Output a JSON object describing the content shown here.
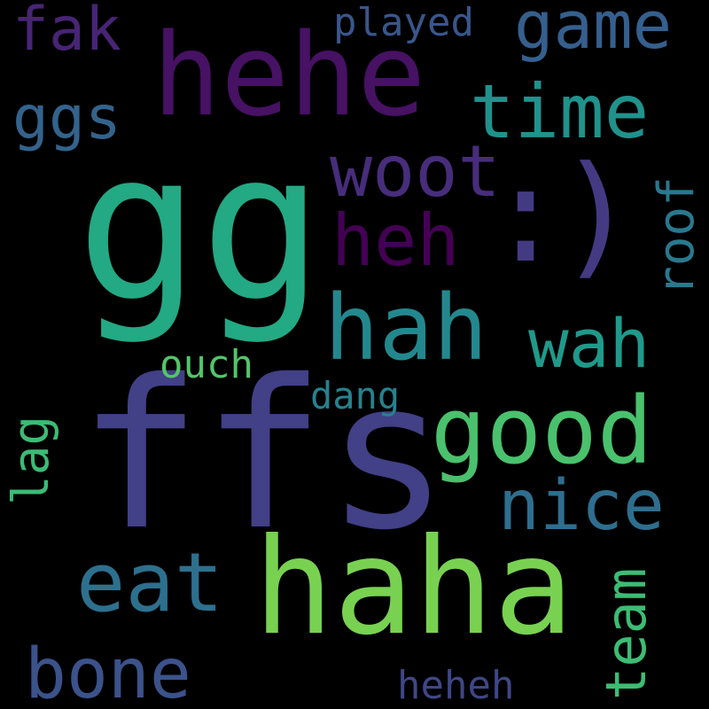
{
  "words": {
    "gg": {
      "text": "gg",
      "color": "#23A983"
    },
    "ffs": {
      "text": "ffs",
      "color": "#424086"
    },
    "haha": {
      "text": "haha",
      "color": "#79D151"
    },
    "hehe": {
      "text": "hehe",
      "color": "#471164"
    },
    "paren": {
      "text": ":)",
      "color": "#443A83"
    },
    "hah": {
      "text": "hah",
      "color": "#23888E"
    },
    "good": {
      "text": "good",
      "color": "#4AC16D"
    },
    "time": {
      "text": "time",
      "color": "#20928C"
    },
    "game": {
      "text": "game",
      "color": "#355F8D"
    },
    "eat": {
      "text": "eat",
      "color": "#2D708E"
    },
    "woot": {
      "text": "woot",
      "color": "#472D7B"
    },
    "heh": {
      "text": "heh",
      "color": "#440154"
    },
    "nice": {
      "text": "nice",
      "color": "#2E6E8E"
    },
    "wah": {
      "text": "wah",
      "color": "#1F9A8A"
    },
    "bone": {
      "text": "bone",
      "color": "#3B528B"
    },
    "ggs": {
      "text": "ggs",
      "color": "#33638D"
    },
    "fak": {
      "text": "fak",
      "color": "#482475"
    },
    "team": {
      "text": "team",
      "color": "#3DBC74"
    },
    "roof": {
      "text": "roof",
      "color": "#2A788E"
    },
    "lag": {
      "text": "lag",
      "color": "#3BBB75"
    },
    "played": {
      "text": "played",
      "color": "#39568C"
    },
    "ouch": {
      "text": "ouch",
      "color": "#52C569"
    },
    "dang": {
      "text": "dang",
      "color": "#26828E"
    },
    "heheh": {
      "text": "heheh",
      "color": "#3F4788"
    }
  }
}
